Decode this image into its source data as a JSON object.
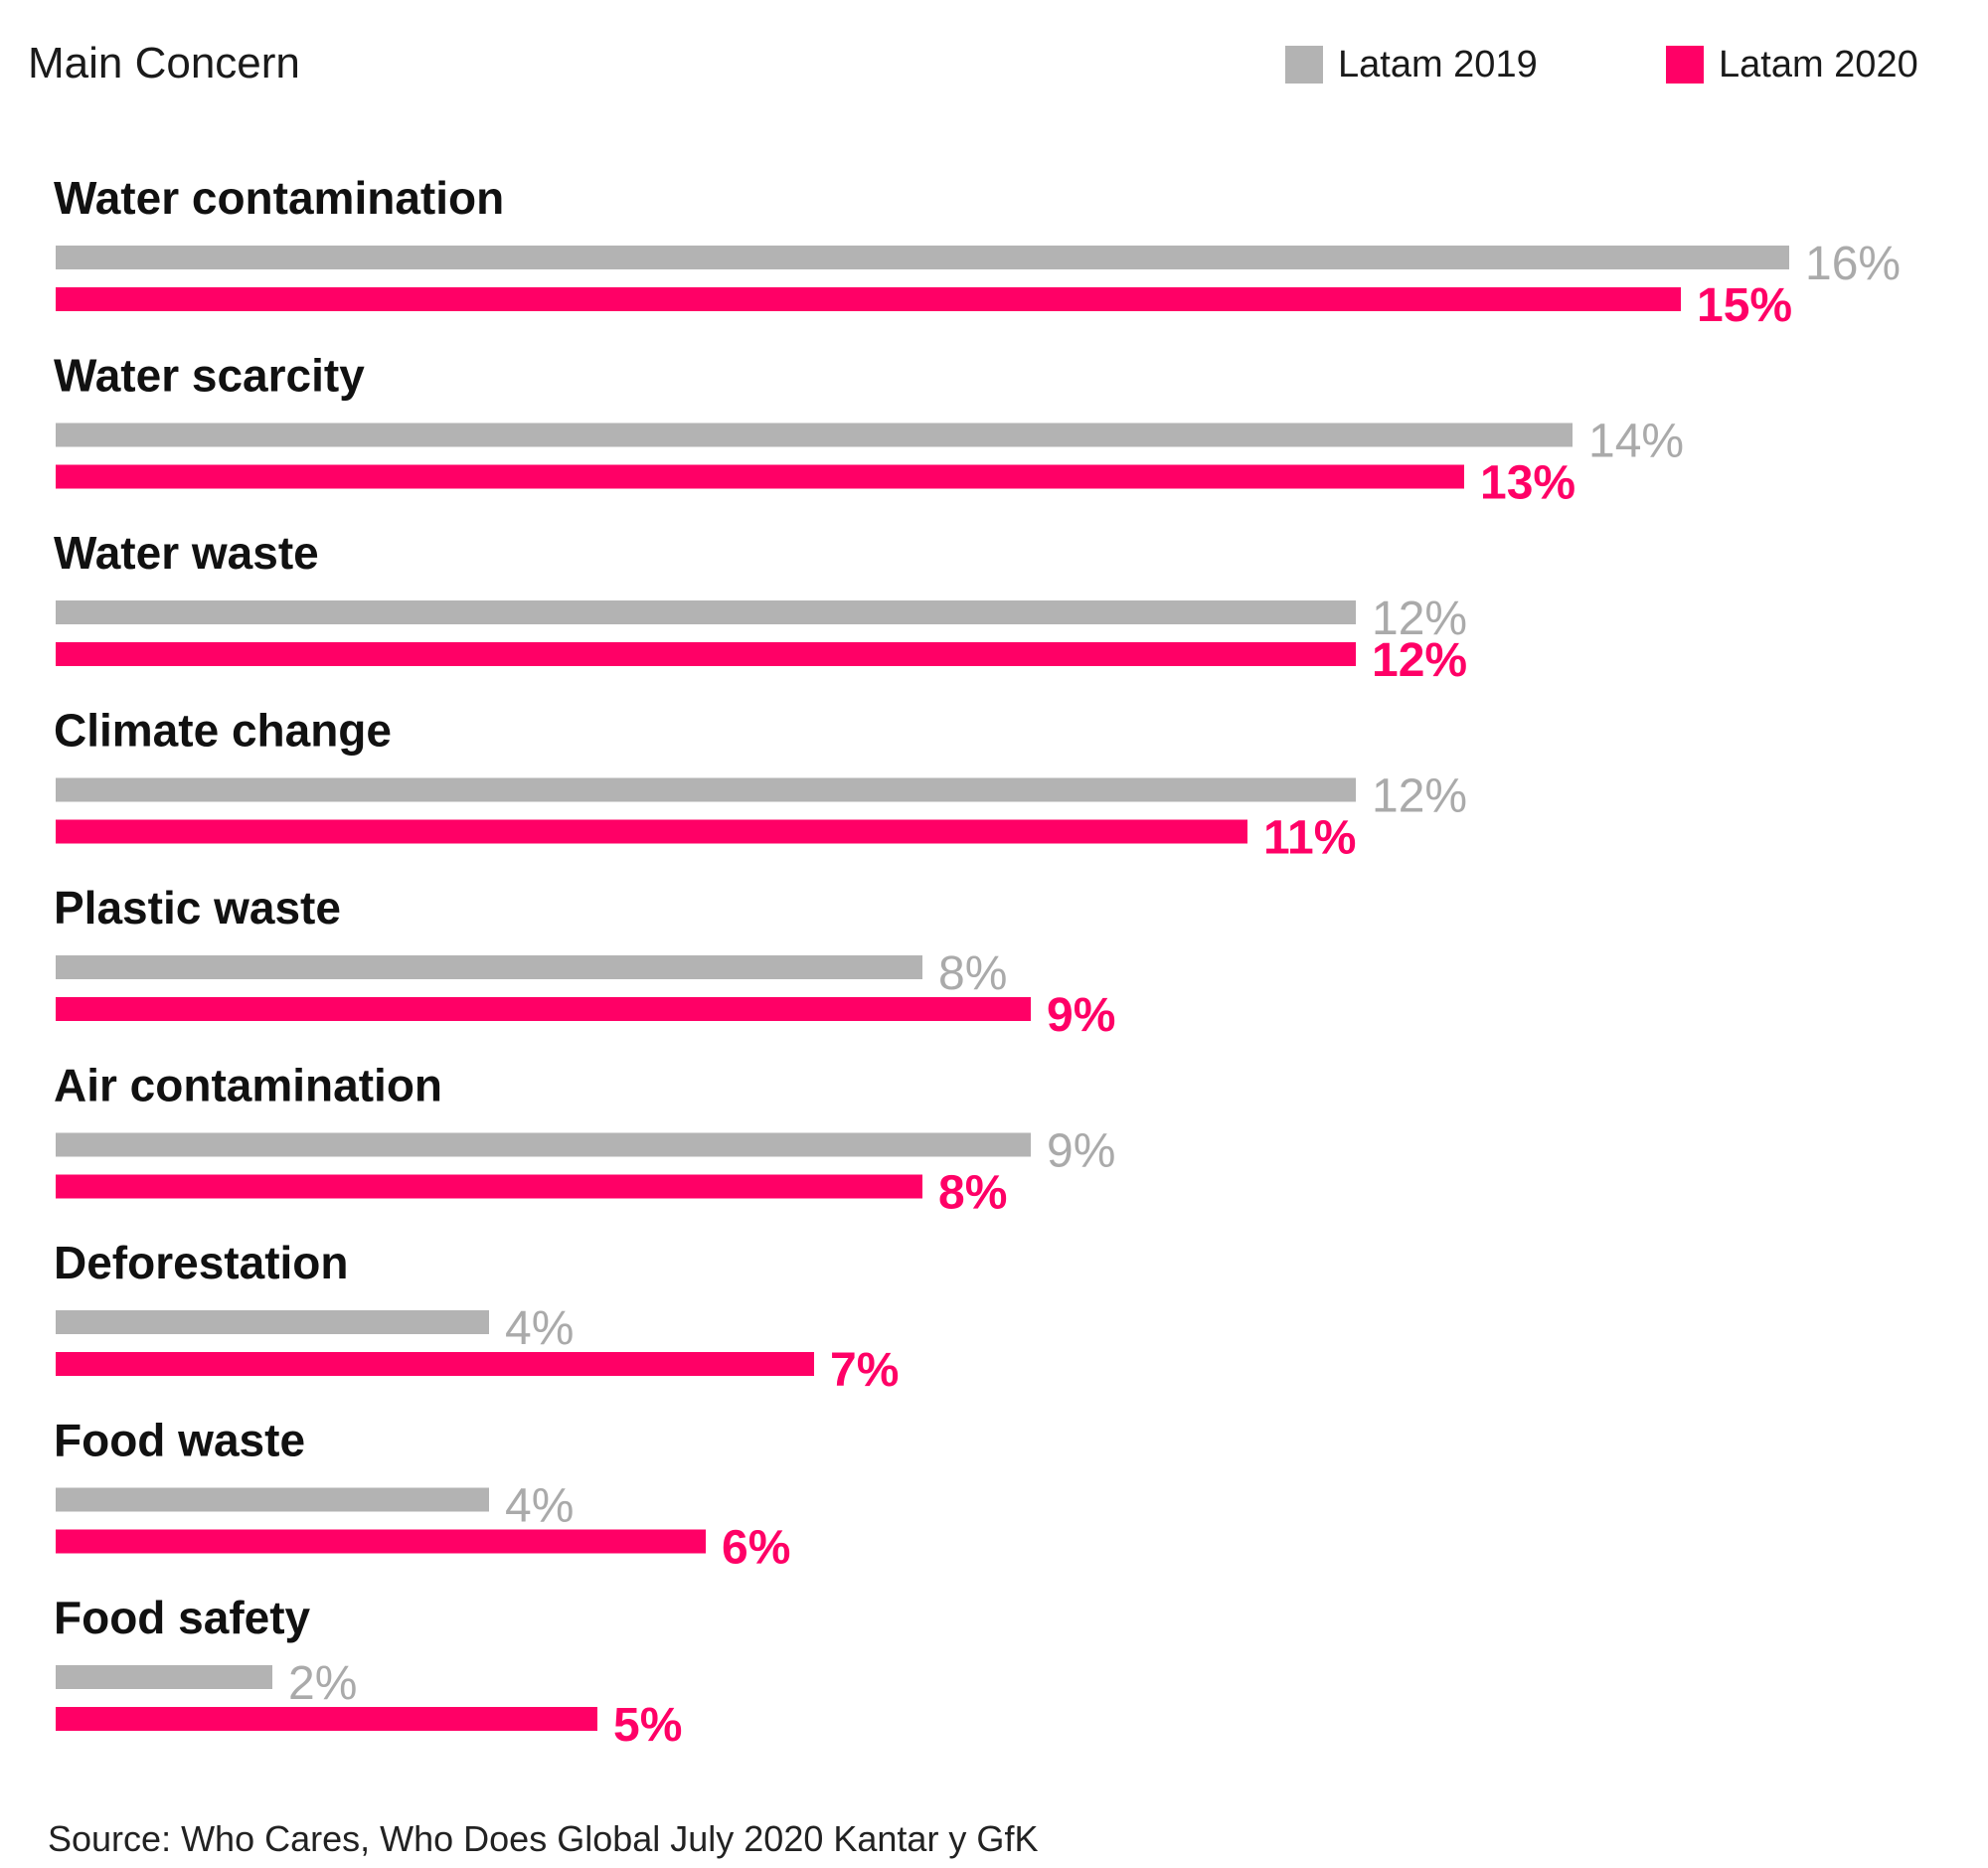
{
  "chart_data": {
    "type": "bar",
    "orientation": "horizontal",
    "title": "Main Concern",
    "source": "Source: Who Cares, Who Does Global July 2020 Kantar y GfK",
    "legend_position": "top-right",
    "grid": false,
    "xlim": [
      0,
      16
    ],
    "categories": [
      "Water contamination",
      "Water scarcity",
      "Water waste",
      "Climate change",
      "Plastic waste",
      "Air contamination",
      "Deforestation",
      "Food waste",
      "Food safety"
    ],
    "series": [
      {
        "name": "Latam 2019",
        "color": "#b3b3b3",
        "values": [
          16,
          14,
          12,
          12,
          8,
          9,
          4,
          4,
          2
        ],
        "labels": [
          "16%",
          "14%",
          "12%",
          "12%",
          "8%",
          "9%",
          "4%",
          "4%",
          "2%"
        ]
      },
      {
        "name": "Latam 2020",
        "color": "#ff0066",
        "values": [
          15,
          13,
          12,
          11,
          9,
          8,
          7,
          6,
          5
        ],
        "labels": [
          "15%",
          "13%",
          "12%",
          "11%",
          "9%",
          "8%",
          "7%",
          "6%",
          "5%"
        ]
      }
    ]
  }
}
